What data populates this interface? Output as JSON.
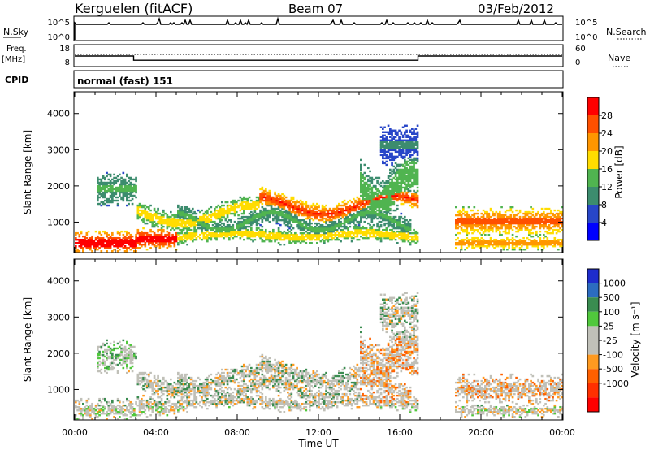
{
  "header": {
    "station": "Kerguelen (fitACF)",
    "beam": "Beam 07",
    "date": "03/Feb/2012"
  },
  "sky_panel": {
    "left_label": "N.Sky",
    "right_label": "N.Search",
    "left_ticks": [
      "10^5",
      "10^0"
    ],
    "right_ticks": [
      "10^5",
      "10^0"
    ]
  },
  "freq_panel": {
    "left_label_1": "Freq.",
    "left_label_2": "[MHz]",
    "right_label": "Nave",
    "left_ticks": [
      "18",
      "8"
    ],
    "right_ticks": [
      "60",
      "0"
    ]
  },
  "cpid_panel": {
    "label": "CPID",
    "text": "normal (fast) 151"
  },
  "colors": {
    "power_scale": [
      "#0000ff",
      "#2846c8",
      "#3c8c6e",
      "#50b450",
      "#ffdc00",
      "#ff9600",
      "#ff5000",
      "#ff0000"
    ],
    "velocity_scale": [
      "#1e2ccc",
      "#2c6cc0",
      "#3a8c50",
      "#50c83c",
      "#c0c0b8",
      "#c0c0b8",
      "#ff9a20",
      "#ff6000",
      "#ff3000",
      "#ff0000"
    ],
    "ground_scatter": "#c0c0b8"
  },
  "chart_data": [
    {
      "type": "heatmap",
      "title": "",
      "xlabel": "Time UT",
      "ylabel": "Slant Range [km]",
      "x_ticks": [
        "00:00",
        "04:00",
        "08:00",
        "12:00",
        "16:00",
        "20:00",
        "00:00"
      ],
      "y_ticks": [
        "1000",
        "2000",
        "3000",
        "4000"
      ],
      "xlim": [
        0,
        24
      ],
      "ylim": [
        180,
        4600
      ],
      "colorbar": {
        "label": "Power [dB]",
        "ticks": [
          "4",
          "8",
          "12",
          "16",
          "20",
          "24",
          "28"
        ],
        "range": [
          0,
          32
        ]
      }
    },
    {
      "type": "heatmap",
      "title": "",
      "xlabel": "Time UT",
      "ylabel": "Slant Range [km]",
      "x_ticks": [
        "00:00",
        "04:00",
        "08:00",
        "12:00",
        "16:00",
        "20:00",
        "00:00"
      ],
      "y_ticks": [
        "1000",
        "2000",
        "3000",
        "4000"
      ],
      "xlim": [
        0,
        24
      ],
      "ylim": [
        180,
        4600
      ],
      "colorbar": {
        "label": "Velocity [m s⁻¹]",
        "ticks": [
          "1000",
          "500",
          "100",
          "25",
          "-25",
          "-100",
          "-500",
          "-1000"
        ]
      }
    }
  ],
  "freq_series": {
    "name": "",
    "x": [
      0,
      2.9,
      2.9,
      16.9,
      16.9,
      24
    ],
    "y": [
      13,
      13,
      11,
      11,
      13,
      13
    ]
  }
}
